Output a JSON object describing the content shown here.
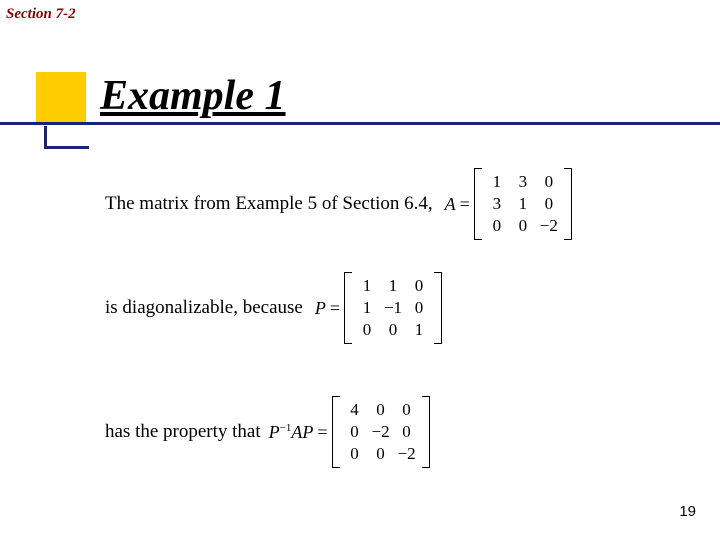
{
  "section_label": "Section 7-2",
  "heading": "Example 1",
  "line1": {
    "text": "The matrix from Example 5 of Section 6.4,",
    "eq_lhs": "A",
    "eq_op": "=",
    "matrix": [
      [
        "1",
        "3",
        "0"
      ],
      [
        "3",
        "1",
        "0"
      ],
      [
        "0",
        "0",
        "−2"
      ]
    ]
  },
  "line2": {
    "text": "is diagonalizable, because",
    "eq_lhs": "P",
    "eq_op": "=",
    "matrix": [
      [
        "1",
        "1",
        "0"
      ],
      [
        "1",
        "−1",
        "0"
      ],
      [
        "0",
        "0",
        "1"
      ]
    ]
  },
  "line3": {
    "text": "has the property that",
    "eq_lhs_html": "P⁻¹AP",
    "eq_op": "=",
    "matrix": [
      [
        "4",
        "0",
        "0"
      ],
      [
        "0",
        "−2",
        "0"
      ],
      [
        "0",
        "0",
        "−2"
      ]
    ]
  },
  "page_number": "19",
  "colors": {
    "section_label": "#8b0000",
    "accent_yellow": "#ffcc00",
    "accent_blue": "#1a237e",
    "background": "#ffffff",
    "text": "#000000"
  }
}
